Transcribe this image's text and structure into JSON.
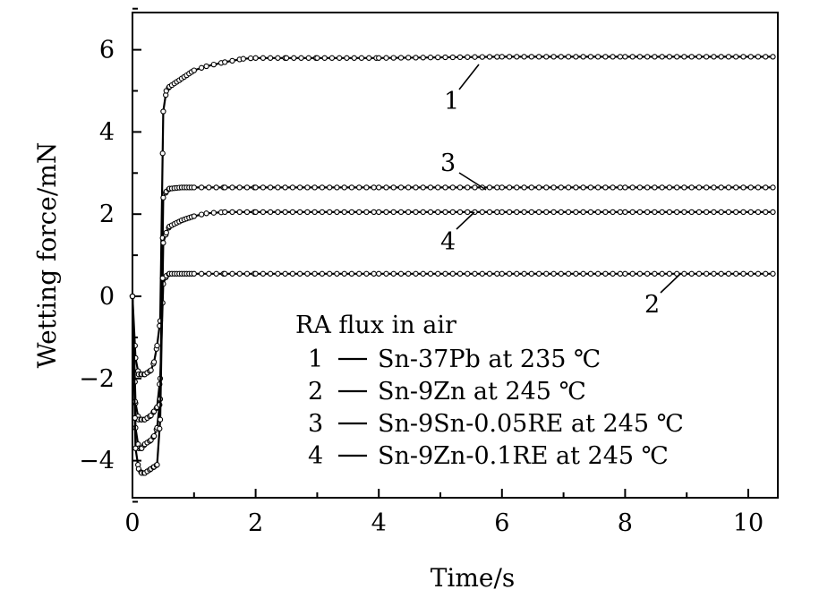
{
  "chart_data": {
    "type": "line",
    "xlabel": "Time/s",
    "ylabel": "Wetting force/mN",
    "xlim": [
      0,
      10.4
    ],
    "ylim": [
      -5,
      7
    ],
    "xticks": [
      "0",
      "2",
      "4",
      "6",
      "8",
      "10"
    ],
    "yticks": [
      "-4",
      "-2",
      "0",
      "2",
      "4",
      "6"
    ],
    "legend": {
      "title": "RA flux in air",
      "entries": [
        {
          "id": "1",
          "label": "Sn-37Pb at 235 ℃"
        },
        {
          "id": "2",
          "label": "Sn-9Zn at 245 ℃"
        },
        {
          "id": "3",
          "label": "Sn-9Sn-0.05RE at 245 ℃"
        },
        {
          "id": "4",
          "label": "Sn-9Zn-0.1RE at 245 ℃"
        }
      ]
    },
    "series": [
      {
        "id": "1",
        "x": [
          0,
          0.05,
          0.1,
          0.15,
          0.2,
          0.3,
          0.35,
          0.4,
          0.45,
          0.5,
          0.55,
          0.6,
          0.8,
          1.0,
          1.2,
          1.5,
          1.8,
          2.0,
          2.5,
          3,
          4,
          6,
          8,
          10.4
        ],
        "y": [
          0,
          -1.5,
          -1.9,
          -1.9,
          -1.9,
          -1.8,
          -1.6,
          -1.2,
          -0.6,
          4.5,
          5.0,
          5.1,
          5.3,
          5.5,
          5.6,
          5.7,
          5.78,
          5.8,
          5.8,
          5.8,
          5.8,
          5.83,
          5.83,
          5.83
        ]
      },
      {
        "id": "2",
        "x": [
          0,
          0.05,
          0.1,
          0.15,
          0.2,
          0.3,
          0.35,
          0.4,
          0.45,
          0.5,
          0.55,
          0.6,
          0.8,
          1.0,
          1.5,
          2,
          4,
          6,
          8,
          10.4
        ],
        "y": [
          0,
          -2.6,
          -3.0,
          -3.0,
          -3.0,
          -2.9,
          -2.8,
          -2.7,
          -2.0,
          0.3,
          0.5,
          0.55,
          0.55,
          0.55,
          0.55,
          0.55,
          0.55,
          0.55,
          0.55,
          0.55
        ]
      },
      {
        "id": "3",
        "x": [
          0,
          0.05,
          0.1,
          0.15,
          0.2,
          0.3,
          0.35,
          0.4,
          0.45,
          0.5,
          0.55,
          0.6,
          0.8,
          1.0,
          1.5,
          2,
          4,
          6,
          8,
          10.4
        ],
        "y": [
          0,
          -3.2,
          -3.7,
          -3.7,
          -3.6,
          -3.5,
          -3.4,
          -3.2,
          -2.5,
          2.4,
          2.55,
          2.62,
          2.65,
          2.65,
          2.65,
          2.65,
          2.65,
          2.65,
          2.65,
          2.65
        ]
      },
      {
        "id": "4",
        "x": [
          0,
          0.05,
          0.1,
          0.15,
          0.2,
          0.3,
          0.35,
          0.4,
          0.45,
          0.5,
          0.55,
          0.6,
          0.8,
          1.0,
          1.2,
          1.5,
          2,
          4,
          6,
          8,
          10.4
        ],
        "y": [
          0,
          -3.7,
          -4.2,
          -4.3,
          -4.3,
          -4.2,
          -4.15,
          -4.1,
          -3.0,
          1.3,
          1.55,
          1.7,
          1.85,
          1.95,
          2.02,
          2.05,
          2.05,
          2.05,
          2.05,
          2.05,
          2.05
        ]
      }
    ],
    "curve_labels": [
      {
        "text": "1",
        "series": "1"
      },
      {
        "text": "3",
        "series": "3"
      },
      {
        "text": "4",
        "series": "4"
      },
      {
        "text": "2",
        "series": "2"
      }
    ]
  }
}
